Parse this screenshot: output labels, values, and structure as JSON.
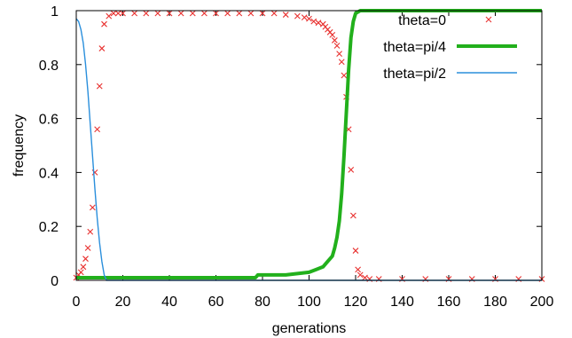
{
  "chart_data": {
    "type": "line",
    "xlabel": "generations",
    "ylabel": "frequency",
    "xlim": [
      0,
      200
    ],
    "ylim": [
      0,
      1
    ],
    "xticks": [
      "0",
      "20",
      "40",
      "60",
      "80",
      "100",
      "120",
      "140",
      "160",
      "180",
      "200"
    ],
    "yticks": [
      "0",
      "0.2",
      "0.4",
      "0.6",
      "0.8",
      "1"
    ],
    "grid": false,
    "legend_position": "top-right",
    "series": [
      {
        "name": "theta=0",
        "style": "points",
        "color": "#e8312f",
        "x": [
          0,
          1,
          2,
          3,
          4,
          5,
          6,
          7,
          8,
          9,
          10,
          11,
          12,
          14,
          16,
          18,
          20,
          25,
          30,
          35,
          40,
          45,
          50,
          55,
          60,
          65,
          70,
          75,
          80,
          85,
          90,
          95,
          98,
          100,
          102,
          104,
          106,
          107,
          108,
          109,
          110,
          111,
          112,
          113,
          114,
          115,
          116,
          117,
          118,
          119,
          120,
          121,
          122,
          124,
          126,
          130,
          140,
          150,
          160,
          170,
          180,
          190,
          200
        ],
        "y": [
          0.01,
          0.02,
          0.03,
          0.05,
          0.08,
          0.12,
          0.18,
          0.27,
          0.4,
          0.56,
          0.72,
          0.86,
          0.95,
          0.98,
          0.99,
          0.99,
          0.99,
          0.99,
          0.99,
          0.99,
          0.99,
          0.99,
          0.99,
          0.99,
          0.99,
          0.99,
          0.99,
          0.99,
          0.99,
          0.99,
          0.985,
          0.98,
          0.975,
          0.97,
          0.96,
          0.955,
          0.95,
          0.94,
          0.93,
          0.92,
          0.91,
          0.89,
          0.87,
          0.84,
          0.81,
          0.76,
          0.68,
          0.56,
          0.41,
          0.24,
          0.11,
          0.04,
          0.02,
          0.01,
          0.005,
          0.005,
          0.005,
          0.005,
          0.005,
          0.005,
          0.005,
          0.005,
          0.005
        ]
      },
      {
        "name": "theta=pi/4",
        "style": "line",
        "color": "#22b01c",
        "x": [
          0,
          20,
          40,
          60,
          77,
          78,
          90,
          100,
          103,
          106,
          108,
          110,
          111,
          112,
          113,
          114,
          115,
          116,
          117,
          118,
          119,
          120,
          121,
          122,
          124,
          130,
          200
        ],
        "y": [
          0.01,
          0.01,
          0.01,
          0.01,
          0.01,
          0.02,
          0.02,
          0.03,
          0.04,
          0.05,
          0.07,
          0.09,
          0.12,
          0.16,
          0.22,
          0.32,
          0.46,
          0.62,
          0.78,
          0.9,
          0.96,
          0.99,
          0.995,
          1.0,
          1.0,
          1.0,
          1.0
        ]
      },
      {
        "name": "theta=pi/2",
        "style": "line",
        "color": "#2a8fdc",
        "x": [
          0,
          1,
          2,
          3,
          4,
          5,
          6,
          7,
          8,
          9,
          10,
          11,
          12,
          13,
          14,
          200
        ],
        "y": [
          0.97,
          0.96,
          0.93,
          0.88,
          0.8,
          0.7,
          0.58,
          0.46,
          0.34,
          0.23,
          0.14,
          0.07,
          0.02,
          0.0,
          0.0,
          0.0
        ]
      }
    ]
  }
}
